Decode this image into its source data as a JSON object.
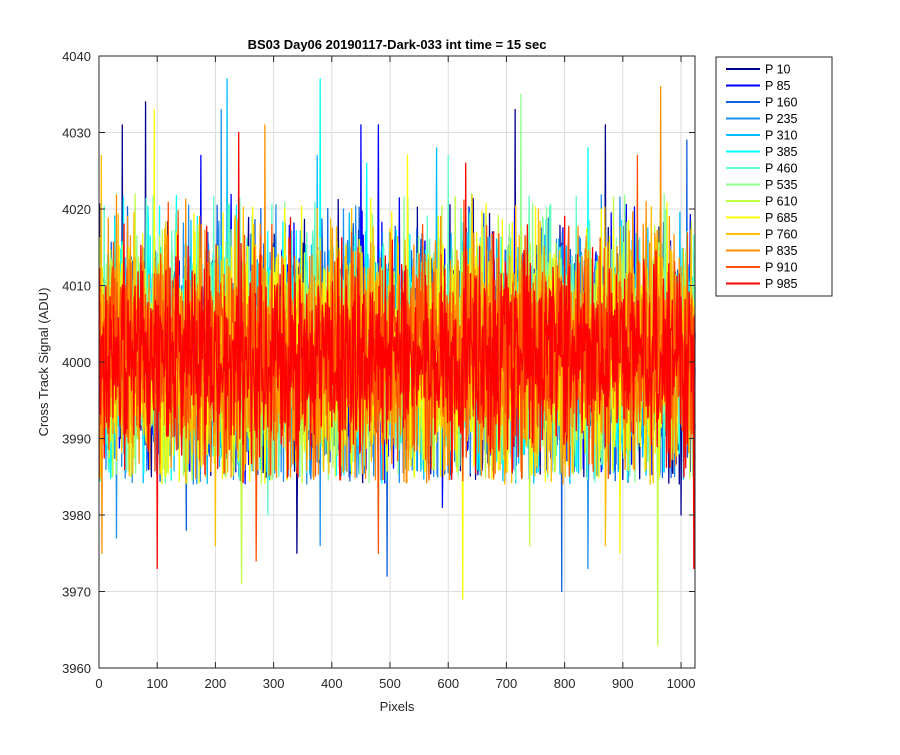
{
  "chart_data": {
    "type": "line",
    "title": "BS03 Day06 20190117-Dark-033 int time = 15 sec",
    "xlabel": "Pixels",
    "ylabel": "Cross Track Signal (ADU)",
    "xlim": [
      0,
      1024
    ],
    "ylim": [
      3960,
      4040
    ],
    "xticks": [
      0,
      100,
      200,
      300,
      400,
      500,
      600,
      700,
      800,
      900,
      1000
    ],
    "yticks": [
      3960,
      3970,
      3980,
      3990,
      4000,
      4010,
      4020,
      4030,
      4040
    ],
    "grid": true,
    "legend_position": "outside-top-right",
    "series": [
      {
        "name": "P 10",
        "color": "#00008f",
        "mean": 4001,
        "std": 7.5,
        "spikes": [
          [
            80,
            4034
          ],
          [
            40,
            4031
          ],
          [
            715,
            4033
          ],
          [
            870,
            4031
          ],
          [
            1000,
            3980
          ],
          [
            340,
            3975
          ]
        ]
      },
      {
        "name": "P 85",
        "color": "#0000ff",
        "mean": 4001,
        "std": 7.5,
        "spikes": [
          [
            175,
            4027
          ],
          [
            450,
            4031
          ],
          [
            480,
            4031
          ],
          [
            590,
            3981
          ]
        ]
      },
      {
        "name": "P 160",
        "color": "#0f5fe0",
        "mean": 4001,
        "std": 7.5,
        "spikes": [
          [
            495,
            3972
          ],
          [
            795,
            3970
          ],
          [
            1010,
            4029
          ],
          [
            150,
            3978
          ]
        ]
      },
      {
        "name": "P 235",
        "color": "#1f8fef",
        "mean": 4001,
        "std": 7.5,
        "spikes": [
          [
            210,
            4033
          ],
          [
            30,
            3977
          ],
          [
            840,
            3973
          ],
          [
            380,
            3976
          ]
        ]
      },
      {
        "name": "P 310",
        "color": "#00bfff",
        "mean": 4001,
        "std": 7.5,
        "spikes": [
          [
            220,
            4037
          ],
          [
            375,
            4027
          ],
          [
            580,
            4028
          ]
        ]
      },
      {
        "name": "P 385",
        "color": "#00ffff",
        "mean": 4001,
        "std": 7.5,
        "spikes": [
          [
            380,
            4037
          ],
          [
            460,
            4026
          ],
          [
            840,
            4028
          ]
        ]
      },
      {
        "name": "P 460",
        "color": "#5fffbf",
        "mean": 4001,
        "std": 7.5,
        "spikes": [
          [
            600,
            4027
          ],
          [
            290,
            3980
          ]
        ]
      },
      {
        "name": "P 535",
        "color": "#8fff8f",
        "mean": 4001,
        "std": 7.5,
        "spikes": [
          [
            725,
            4035
          ],
          [
            640,
            4022
          ]
        ]
      },
      {
        "name": "P 610",
        "color": "#bfff3f",
        "mean": 4001,
        "std": 7.5,
        "spikes": [
          [
            960,
            3963
          ],
          [
            245,
            3971
          ],
          [
            740,
            3976
          ]
        ]
      },
      {
        "name": "P 685",
        "color": "#ffff00",
        "mean": 4001,
        "std": 7.5,
        "spikes": [
          [
            625,
            3969
          ],
          [
            95,
            4033
          ],
          [
            895,
            3975
          ],
          [
            530,
            4027
          ]
        ]
      },
      {
        "name": "P 760",
        "color": "#ffbf00",
        "mean": 4001,
        "std": 7.5,
        "spikes": [
          [
            4,
            4027
          ],
          [
            200,
            3976
          ],
          [
            870,
            3976
          ]
        ]
      },
      {
        "name": "P 835",
        "color": "#ff8f00",
        "mean": 4001,
        "std": 7.5,
        "spikes": [
          [
            965,
            4036
          ],
          [
            5,
            3975
          ],
          [
            285,
            4031
          ],
          [
            940,
            4021
          ]
        ]
      },
      {
        "name": "P 910",
        "color": "#ff4f00",
        "mean": 4001,
        "std": 7.0,
        "spikes": [
          [
            270,
            3974
          ],
          [
            925,
            4027
          ],
          [
            480,
            3975
          ]
        ]
      },
      {
        "name": "P 985",
        "color": "#ff0000",
        "mean": 4001,
        "std": 6.5,
        "spikes": [
          [
            240,
            4030
          ],
          [
            100,
            3973
          ],
          [
            1022,
            3973
          ],
          [
            630,
            4026
          ]
        ]
      }
    ]
  }
}
